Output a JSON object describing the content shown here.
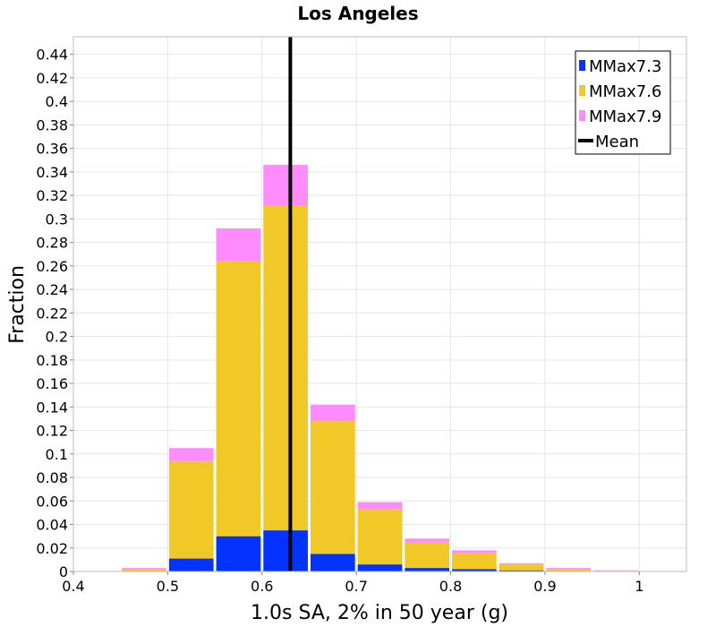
{
  "chart_data": {
    "type": "bar",
    "stacked": true,
    "title": "Los Angeles",
    "xlabel": "1.0s SA, 2% in 50 year (g)",
    "ylabel": "Fraction",
    "xlim": [
      0.4,
      1.05
    ],
    "ylim": [
      0,
      0.455
    ],
    "bin_width": 0.05,
    "x_ticks": [
      "0.4",
      "0.5",
      "0.6",
      "0.7",
      "0.8",
      "0.9",
      "1"
    ],
    "y_ticks": [
      "0",
      "0.02",
      "0.04",
      "0.06",
      "0.08",
      "0.1",
      "0.12",
      "0.14",
      "0.16",
      "0.18",
      "0.2",
      "0.22",
      "0.24",
      "0.26",
      "0.28",
      "0.3",
      "0.32",
      "0.34",
      "0.36",
      "0.38",
      "0.4",
      "0.42",
      "0.44"
    ],
    "grid": true,
    "legend_position": "top-right",
    "bin_centers": [
      0.475,
      0.525,
      0.575,
      0.625,
      0.675,
      0.725,
      0.775,
      0.825,
      0.875,
      0.925,
      0.975
    ],
    "series": [
      {
        "name": "MMax7.3",
        "color": "#0433ff",
        "values": [
          0.0,
          0.011,
          0.03,
          0.035,
          0.015,
          0.006,
          0.003,
          0.002,
          0.001,
          0.0,
          0.0
        ]
      },
      {
        "name": "MMax7.6",
        "color": "#f0c929",
        "values": [
          0.002,
          0.083,
          0.234,
          0.276,
          0.113,
          0.047,
          0.022,
          0.014,
          0.005,
          0.002,
          0.0005
        ]
      },
      {
        "name": "MMax7.9",
        "color": "#ff8cff",
        "values": [
          0.001,
          0.011,
          0.028,
          0.035,
          0.014,
          0.006,
          0.003,
          0.002,
          0.001,
          0.001,
          0.0005
        ]
      }
    ],
    "mean": {
      "name": "Mean",
      "value": 0.63,
      "color": "#000000"
    }
  }
}
